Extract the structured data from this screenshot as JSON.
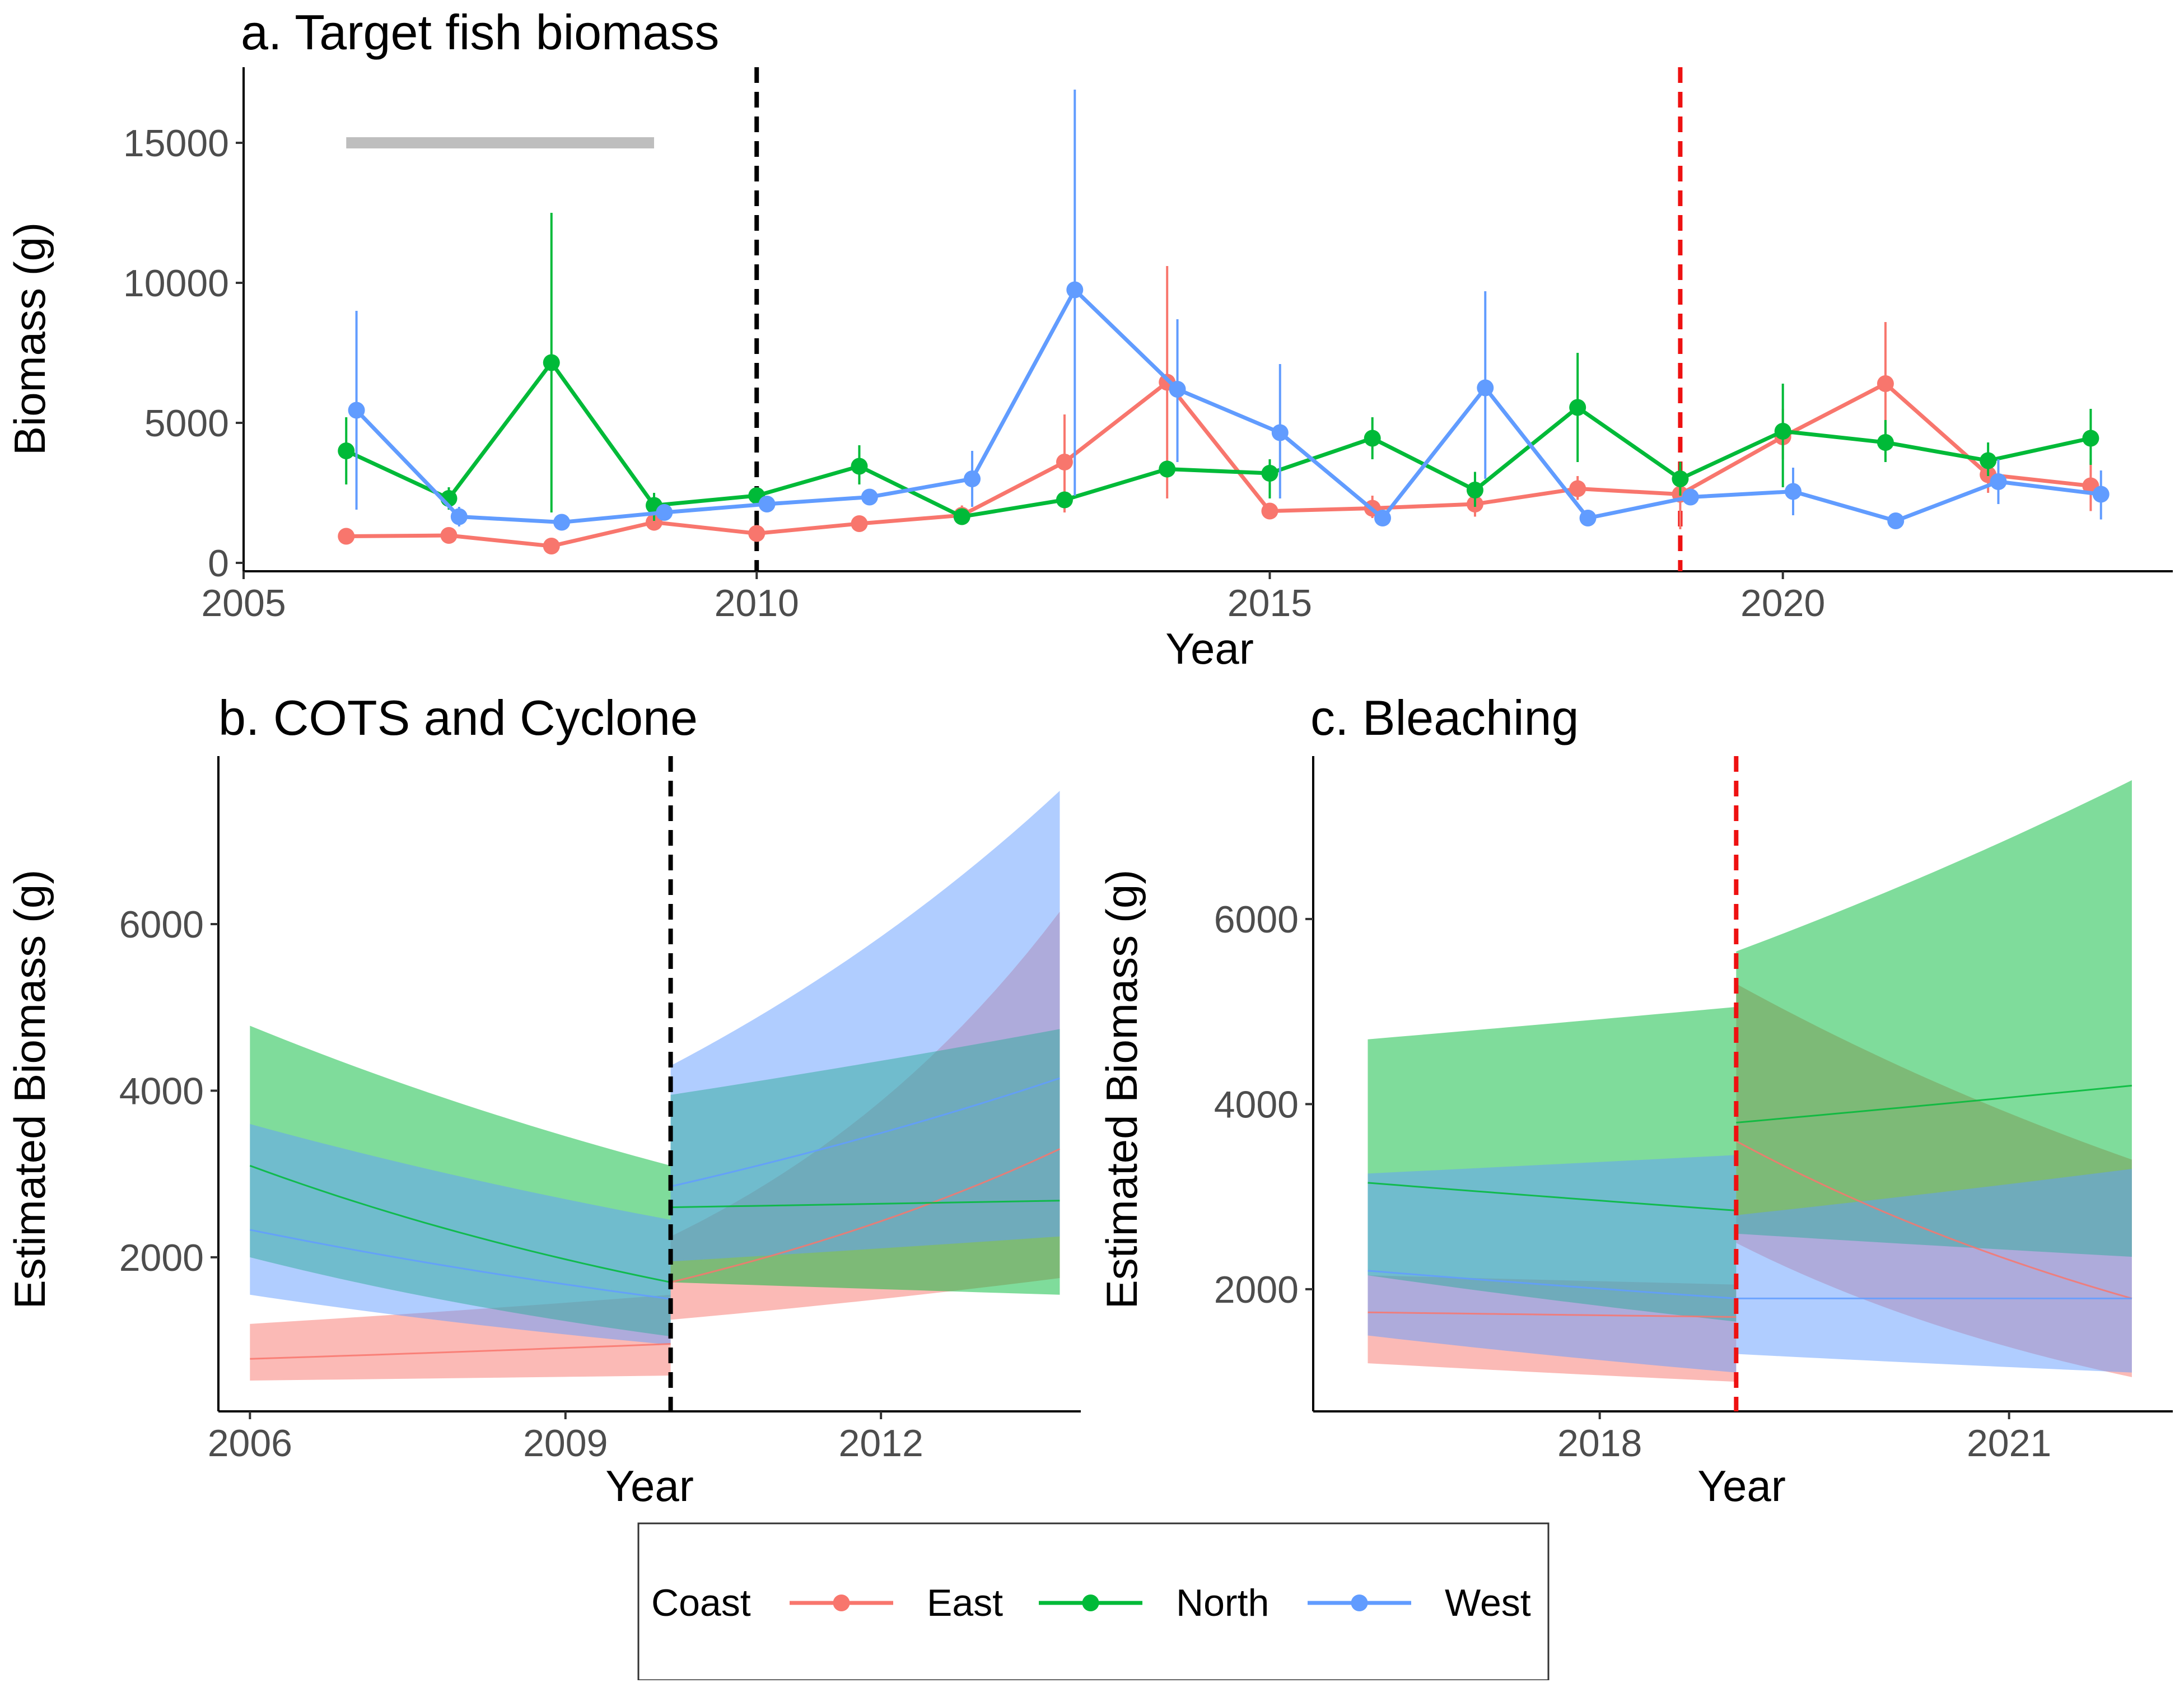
{
  "legend": {
    "title": "Coast",
    "entries": [
      {
        "name": "East",
        "color": "#F8766D"
      },
      {
        "name": "North",
        "color": "#00BA38"
      },
      {
        "name": "West",
        "color": "#619CFF"
      }
    ]
  },
  "chart_data": [
    {
      "id": "a",
      "type": "line",
      "title": "a. Target fish biomass",
      "xlabel": "Year",
      "ylabel": "Biomass (g)",
      "xlim": [
        2005,
        2023.8
      ],
      "ylim": [
        -300,
        17500
      ],
      "xticks": [
        2005,
        2010,
        2015,
        2020
      ],
      "yticks": [
        0,
        5000,
        10000,
        15000
      ],
      "grid": false,
      "event_lines": [
        {
          "x": 2010,
          "color": "#000000",
          "style": "dashed"
        },
        {
          "x": 2019,
          "color": "#ee1111",
          "style": "dashed"
        }
      ],
      "reference_segment": {
        "x": [
          2006,
          2009
        ],
        "y": 15000,
        "color": "#bebebe"
      },
      "series": [
        {
          "name": "East",
          "color": "#F8766D",
          "x": [
            2006,
            2007,
            2008,
            2009,
            2010,
            2011,
            2012,
            2013,
            2014,
            2015,
            2016,
            2017,
            2018,
            2019,
            2020,
            2021,
            2022,
            2023
          ],
          "y": [
            950,
            980,
            600,
            1450,
            1050,
            1400,
            1700,
            3600,
            6450,
            1850,
            1950,
            2100,
            2650,
            2450,
            4500,
            6400,
            3150,
            2750
          ],
          "lo": [
            850,
            900,
            500,
            1150,
            950,
            1250,
            1350,
            1800,
            2300,
            1650,
            1600,
            1650,
            2250,
            1200,
            3700,
            4600,
            2500,
            1850
          ],
          "hi": [
            1050,
            1100,
            700,
            1800,
            1150,
            1550,
            2050,
            5300,
            10600,
            2050,
            2400,
            2500,
            3100,
            3500,
            5500,
            8600,
            3600,
            3700
          ]
        },
        {
          "name": "North",
          "color": "#00BA38",
          "x": [
            2006,
            2007,
            2008,
            2009,
            2010,
            2011,
            2012,
            2013,
            2014,
            2015,
            2016,
            2017,
            2018,
            2019,
            2020,
            2021,
            2022,
            2023
          ],
          "y": [
            4000,
            2300,
            7150,
            2050,
            2400,
            3450,
            1650,
            2250,
            3350,
            3200,
            4450,
            2600,
            5550,
            3000,
            4700,
            4300,
            3650,
            4450
          ],
          "lo": [
            2800,
            1900,
            1800,
            1500,
            2200,
            2800,
            1550,
            2100,
            3050,
            2300,
            3700,
            2000,
            3600,
            2400,
            2700,
            3600,
            3100,
            3500
          ],
          "hi": [
            5200,
            2700,
            12500,
            2500,
            2600,
            4200,
            1800,
            2400,
            3650,
            3700,
            5200,
            3250,
            7500,
            3600,
            6400,
            5100,
            4300,
            5500
          ]
        },
        {
          "name": "West",
          "color": "#619CFF",
          "x": [
            2006.1,
            2007.1,
            2008.1,
            2009.1,
            2010.1,
            2011.1,
            2012.1,
            2013.1,
            2014.1,
            2015.1,
            2016.1,
            2017.1,
            2018.1,
            2019.1,
            2020.1,
            2021.1,
            2022.1,
            2023.1
          ],
          "y": [
            5450,
            1650,
            1450,
            1800,
            2100,
            2350,
            3000,
            9750,
            6200,
            4650,
            1600,
            6250,
            1600,
            2350,
            2550,
            1500,
            2900,
            2450
          ],
          "lo": [
            1900,
            1300,
            1250,
            1600,
            1950,
            2200,
            2000,
            2400,
            3600,
            2300,
            1400,
            3000,
            1400,
            2100,
            1700,
            1350,
            2100,
            1550
          ],
          "hi": [
            9000,
            2000,
            1650,
            2000,
            2250,
            2500,
            4000,
            16900,
            8700,
            7100,
            1800,
            9700,
            1800,
            2600,
            3400,
            1650,
            3700,
            3300
          ]
        }
      ]
    },
    {
      "id": "b",
      "type": "area",
      "title": "b. COTS and Cyclone",
      "xlabel": "Year",
      "ylabel": "Estimated Biomass (g)",
      "xlim": [
        2005.7,
        2013.9
      ],
      "ylim": [
        150,
        7950
      ],
      "xticks": [
        2006,
        2009,
        2012
      ],
      "yticks": [
        2000,
        4000,
        6000
      ],
      "grid": false,
      "event_lines": [
        {
          "x": 2010,
          "color": "#000000",
          "style": "dashed"
        }
      ],
      "series": [
        {
          "name": "East",
          "color": "#F8766D",
          "segments": [
            {
              "x": [
                2006,
                2010
              ],
              "y": [
                780,
                960
              ],
              "lo": [
                520,
                580
              ],
              "hi": [
                1200,
                1550
              ]
            },
            {
              "x": [
                2010,
                2013.7
              ],
              "y": [
                1700,
                3300
              ],
              "lo": [
                1250,
                1750
              ],
              "hi": [
                2250,
                6150
              ]
            }
          ]
        },
        {
          "name": "North",
          "color": "#00BA38",
          "segments": [
            {
              "x": [
                2006,
                2010
              ],
              "y": [
                3100,
                1700
              ],
              "lo": [
                2000,
                1050
              ],
              "hi": [
                4780,
                3100
              ]
            },
            {
              "x": [
                2010,
                2013.7
              ],
              "y": [
                2600,
                2680
              ],
              "lo": [
                1700,
                1550
              ],
              "hi": [
                3950,
                4740
              ]
            }
          ]
        },
        {
          "name": "West",
          "color": "#619CFF",
          "segments": [
            {
              "x": [
                2006,
                2010
              ],
              "y": [
                2330,
                1500
              ],
              "lo": [
                1550,
                950
              ],
              "hi": [
                3600,
                2450
              ]
            },
            {
              "x": [
                2010,
                2013.7
              ],
              "y": [
                2850,
                4150
              ],
              "lo": [
                1950,
                2250
              ],
              "hi": [
                4300,
                7600
              ]
            }
          ]
        }
      ]
    },
    {
      "id": "c",
      "type": "area",
      "title": "c. Bleaching",
      "xlabel": "Year",
      "ylabel": "Estimated Biomass (g)",
      "xlim": [
        2015.9,
        2022.2
      ],
      "ylim": [
        680,
        7700
      ],
      "xticks": [
        2018,
        2021
      ],
      "yticks": [
        2000,
        4000,
        6000
      ],
      "grid": false,
      "event_lines": [
        {
          "x": 2019,
          "color": "#ee1111",
          "style": "dashed"
        }
      ],
      "series": [
        {
          "name": "East",
          "color": "#F8766D",
          "segments": [
            {
              "x": [
                2016.3,
                2019
              ],
              "y": [
                1750,
                1700
              ],
              "lo": [
                1200,
                1000
              ],
              "hi": [
                2150,
                2050
              ]
            },
            {
              "x": [
                2019,
                2021.9
              ],
              "y": [
                3600,
                1900
              ],
              "lo": [
                2500,
                1050
              ],
              "hi": [
                5300,
                3400
              ]
            }
          ]
        },
        {
          "name": "North",
          "color": "#00BA38",
          "segments": [
            {
              "x": [
                2016.3,
                2019
              ],
              "y": [
                3150,
                2850
              ],
              "lo": [
                2150,
                1650
              ],
              "hi": [
                4700,
                5050
              ]
            },
            {
              "x": [
                2019,
                2021.9
              ],
              "y": [
                3800,
                4200
              ],
              "lo": [
                2600,
                2350
              ],
              "hi": [
                5650,
                7500
              ]
            }
          ]
        },
        {
          "name": "West",
          "color": "#619CFF",
          "segments": [
            {
              "x": [
                2016.3,
                2019
              ],
              "y": [
                2200,
                1900
              ],
              "lo": [
                1500,
                1100
              ],
              "hi": [
                3250,
                3450
              ]
            },
            {
              "x": [
                2019,
                2021.9
              ],
              "y": [
                1900,
                1900
              ],
              "lo": [
                1300,
                1100
              ],
              "hi": [
                2800,
                3300
              ]
            }
          ]
        }
      ]
    }
  ]
}
